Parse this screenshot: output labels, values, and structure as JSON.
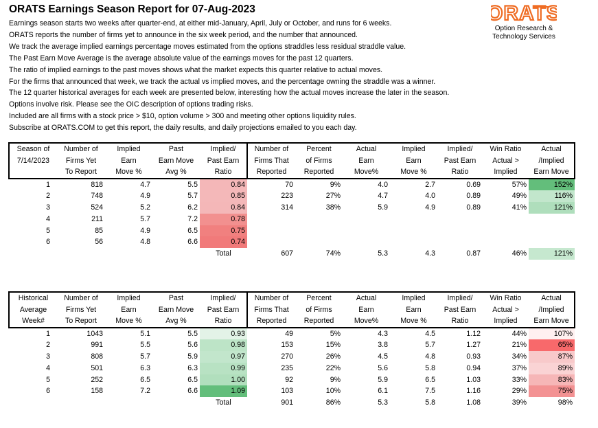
{
  "header": {
    "title": "ORATS Earnings Season Report for 07-Aug-2023",
    "intro": [
      "Earnings season starts two weeks after quarter-end, at either mid-January, April, July or October, and runs for 6 weeks.",
      "ORATS reports the number of firms yet to announce in the six week period, and the number that announced.",
      "We track the average implied earnings percentage moves estimated from the options straddles less residual straddle value.",
      "The Past Earn Move Average is the average absolute value of the earnings moves for the past 12 quarters.",
      "The ratio of implied earnings to the past moves shows what the market expects this quarter relative to actual moves.",
      "For the firms that announced that week, we track the actual vs implied moves, and the percentage owning the straddle was a winner.",
      "The 12 quarter historical averages for each week are presented below, interesting how the actual moves increase the later in the season.",
      "Options involve risk. Please see the OIC description of options trading risks.",
      "Included are all firms with a stock price > $10, option volume > 300 and meeting other options liquidity rules.",
      "Subscribe at ORATS.COM to get this report, the daily results, and daily projections emailed to you each day."
    ]
  },
  "logo": {
    "wordmark": "ORATS",
    "tagline": [
      "Option Research &",
      "Technology Services"
    ],
    "color": "#ef6c23"
  },
  "current_season": {
    "headers": [
      [
        "Season of",
        "7/14/2023",
        ""
      ],
      [
        "Number of",
        "Firms Yet",
        "To Report"
      ],
      [
        "Implied",
        "Earn",
        "Move %"
      ],
      [
        "Past",
        "Earn Move",
        "Avg %"
      ],
      [
        "Implied/",
        "Past Earn",
        "Ratio"
      ],
      [
        "Number of",
        "Firms That",
        "Reported"
      ],
      [
        "Percent",
        "of Firms",
        "Reported"
      ],
      [
        "Actual",
        "Earn",
        "Move%"
      ],
      [
        "Implied",
        "Earn",
        "Move %"
      ],
      [
        "Implied/",
        "Past Earn",
        "Ratio"
      ],
      [
        "Win Ratio",
        "Actual >",
        "Implied"
      ],
      [
        "Actual",
        "/Implied",
        "Earn Move"
      ]
    ],
    "rows": [
      [
        "1",
        "818",
        "4.7",
        "5.5",
        "0.84",
        "70",
        "9%",
        "4.0",
        "2.7",
        "0.69",
        "57%",
        "152%"
      ],
      [
        "2",
        "748",
        "4.9",
        "5.7",
        "0.85",
        "223",
        "27%",
        "4.7",
        "4.0",
        "0.89",
        "49%",
        "116%"
      ],
      [
        "3",
        "524",
        "5.2",
        "6.2",
        "0.84",
        "314",
        "38%",
        "5.9",
        "4.9",
        "0.89",
        "41%",
        "121%"
      ],
      [
        "4",
        "211",
        "5.7",
        "7.2",
        "0.78",
        "",
        "",
        "",
        "",
        "",
        "",
        ""
      ],
      [
        "5",
        "85",
        "4.9",
        "6.5",
        "0.75",
        "",
        "",
        "",
        "",
        "",
        "",
        ""
      ],
      [
        "6",
        "56",
        "4.8",
        "6.6",
        "0.74",
        "",
        "",
        "",
        "",
        "",
        "",
        ""
      ],
      [
        "",
        "",
        "",
        "",
        "Total",
        "607",
        "74%",
        "5.3",
        "4.3",
        "0.87",
        "46%",
        "121%"
      ]
    ],
    "cell_colors": {
      "0-4": "#f4b7b8",
      "1-4": "#f4b8b9",
      "2-4": "#f4b7b8",
      "3-4": "#f2908f",
      "4-4": "#f1807f",
      "5-4": "#f17a7a",
      "0-11": "#63be7b",
      "1-11": "#c2e6cc",
      "2-11": "#afdebc",
      "6-11": "#c6e8cf"
    }
  },
  "historical": {
    "headers": [
      [
        "Historical",
        "Average",
        "Week#"
      ],
      [
        "Number of",
        "Firms Yet",
        "To Report"
      ],
      [
        "Implied",
        "Earn",
        "Move %"
      ],
      [
        "Past",
        "Earn Move",
        "Avg %"
      ],
      [
        "Implied/",
        "Past Earn",
        "Ratio"
      ],
      [
        "Number of",
        "Firms That",
        "Reported"
      ],
      [
        "Percent",
        "of Firms",
        "Reported"
      ],
      [
        "Actual",
        "Earn",
        "Move%"
      ],
      [
        "Implied",
        "Earn",
        "Move %"
      ],
      [
        "Implied/",
        "Past Earn",
        "Ratio"
      ],
      [
        "Win Ratio",
        "Actual >",
        "Implied"
      ],
      [
        "Actual",
        "/Implied",
        "Earn Move"
      ]
    ],
    "rows": [
      [
        "1",
        "1043",
        "5.1",
        "5.5",
        "0.93",
        "49",
        "5%",
        "4.3",
        "4.5",
        "1.12",
        "44%",
        "107%"
      ],
      [
        "2",
        "991",
        "5.5",
        "5.6",
        "0.98",
        "153",
        "15%",
        "3.8",
        "5.7",
        "1.27",
        "21%",
        "65%"
      ],
      [
        "3",
        "808",
        "5.7",
        "5.9",
        "0.97",
        "270",
        "26%",
        "4.5",
        "4.8",
        "0.93",
        "34%",
        "87%"
      ],
      [
        "4",
        "501",
        "6.3",
        "6.3",
        "0.99",
        "235",
        "22%",
        "5.6",
        "5.8",
        "0.94",
        "37%",
        "89%"
      ],
      [
        "5",
        "252",
        "6.5",
        "6.5",
        "1.00",
        "92",
        "9%",
        "5.9",
        "6.5",
        "1.03",
        "33%",
        "83%"
      ],
      [
        "6",
        "158",
        "7.2",
        "6.6",
        "1.09",
        "103",
        "10%",
        "6.1",
        "7.5",
        "1.16",
        "29%",
        "75%"
      ],
      [
        "",
        "",
        "",
        "",
        "Total",
        "901",
        "86%",
        "5.3",
        "5.8",
        "1.08",
        "39%",
        "98%"
      ]
    ],
    "cell_colors": {
      "0-4": "#e3f3e7",
      "1-4": "#bde4c7",
      "2-4": "#c2e6cc",
      "3-4": "#b8e2c3",
      "4-4": "#b1dfbd",
      "5-4": "#63be7b",
      "0-11": "#fff0f0",
      "1-11": "#f8696b",
      "2-11": "#f8c9ca",
      "3-11": "#fad3d4",
      "4-11": "#f6b6b7",
      "5-11": "#f39293"
    }
  }
}
